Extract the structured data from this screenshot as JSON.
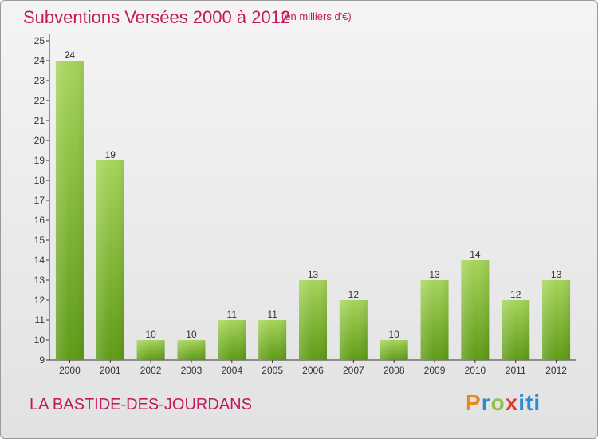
{
  "header": {
    "title": "Subventions Versées 2000 à 2012",
    "unit": "(en milliers d'€)"
  },
  "footer": {
    "place": "LA BASTIDE-DES-JOURDANS",
    "logo": "Proxiti"
  },
  "colors": {
    "title": "#c2185b",
    "bar_top": "#a6d45a",
    "bar_bottom": "#5e9b16"
  },
  "chart_data": {
    "type": "bar",
    "title": "Subventions Versées 2000 à 2012",
    "subtitle": "(en milliers d'€)",
    "categories": [
      "2000",
      "2001",
      "2002",
      "2003",
      "2004",
      "2005",
      "2006",
      "2007",
      "2008",
      "2009",
      "2010",
      "2011",
      "2012"
    ],
    "values": [
      24,
      19,
      10,
      10,
      11,
      11,
      13,
      12,
      10,
      13,
      14,
      12,
      13
    ],
    "ylim": [
      9,
      25
    ],
    "yticks": [
      9,
      10,
      11,
      12,
      13,
      14,
      15,
      16,
      17,
      18,
      19,
      20,
      21,
      22,
      23,
      24,
      25
    ],
    "grid": false,
    "data_labels": true
  }
}
